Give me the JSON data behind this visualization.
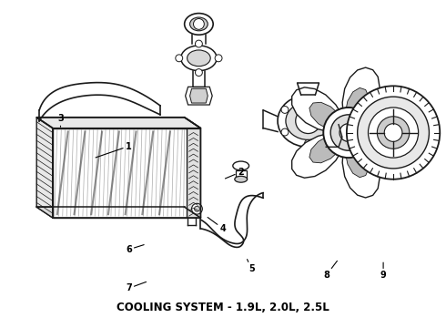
{
  "title": "COOLING SYSTEM - 1.9L, 2.0L, 2.5L",
  "bg_color": "#ffffff",
  "line_color": "#1a1a1a",
  "title_fontsize": 8.5,
  "title_fontweight": "bold",
  "fig_width": 4.9,
  "fig_height": 3.6,
  "dpi": 100,
  "label_positions": {
    "1": {
      "lxy": [
        0.285,
        0.555
      ],
      "axy": [
        0.21,
        0.52
      ]
    },
    "2": {
      "lxy": [
        0.54,
        0.475
      ],
      "axy": [
        0.505,
        0.455
      ]
    },
    "3": {
      "lxy": [
        0.13,
        0.64
      ],
      "axy": [
        0.13,
        0.615
      ]
    },
    "4": {
      "lxy": [
        0.5,
        0.3
      ],
      "axy": [
        0.465,
        0.335
      ]
    },
    "5": {
      "lxy": [
        0.565,
        0.175
      ],
      "axy": [
        0.555,
        0.205
      ]
    },
    "6": {
      "lxy": [
        0.285,
        0.235
      ],
      "axy": [
        0.32,
        0.25
      ]
    },
    "7": {
      "lxy": [
        0.285,
        0.115
      ],
      "axy": [
        0.325,
        0.135
      ]
    },
    "8": {
      "lxy": [
        0.735,
        0.155
      ],
      "axy": [
        0.76,
        0.2
      ]
    },
    "9": {
      "lxy": [
        0.865,
        0.155
      ],
      "axy": [
        0.865,
        0.195
      ]
    }
  }
}
